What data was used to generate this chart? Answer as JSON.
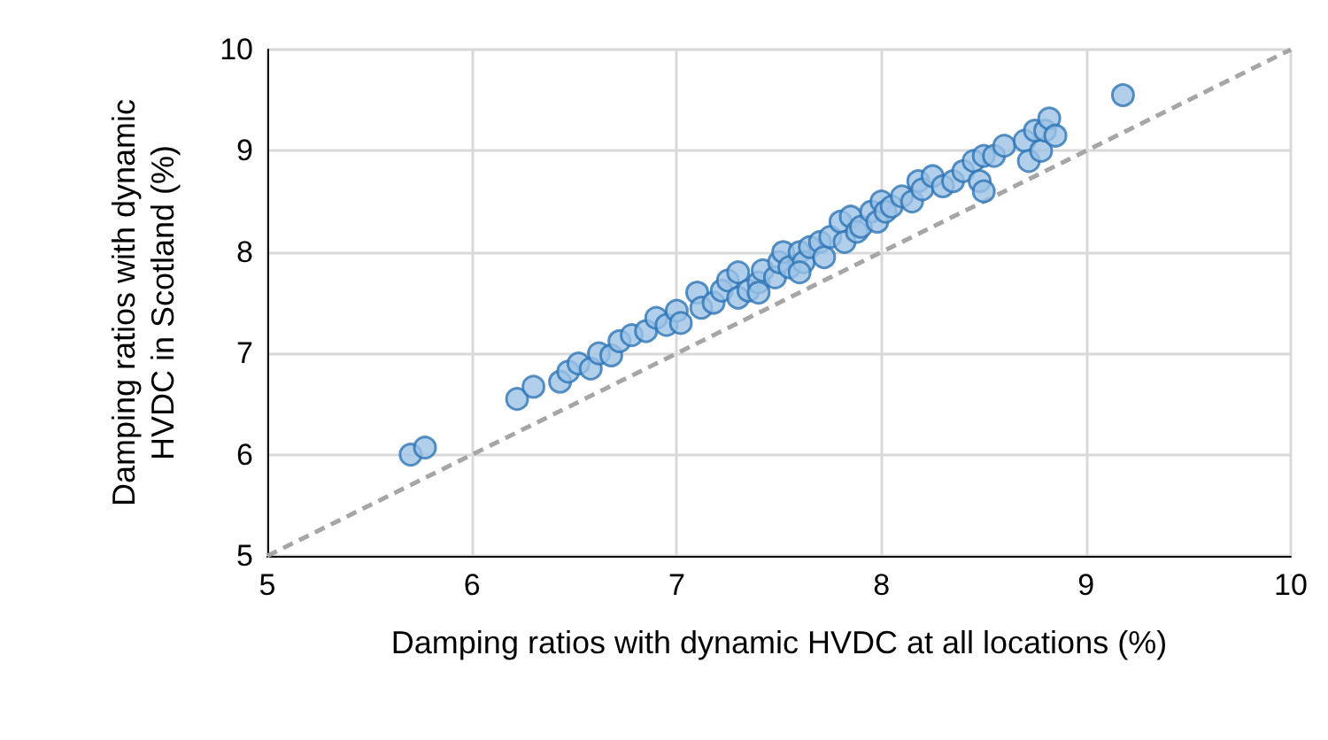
{
  "chart_data": {
    "type": "scatter",
    "xlabel": "Damping ratios with dynamic HVDC at all locations (%)",
    "ylabel": "Damping ratios with dynamic\nHVDC in Scotland (%)",
    "xlim": [
      5,
      10
    ],
    "ylim": [
      5,
      10
    ],
    "xticks": [
      5,
      6,
      7,
      8,
      9,
      10
    ],
    "yticks": [
      5,
      6,
      7,
      8,
      9,
      10
    ],
    "grid": true,
    "marker": "circle",
    "series": [
      {
        "color": "#9dc3e6",
        "x": [
          5.7,
          5.77,
          6.22,
          6.3,
          6.43,
          6.47,
          6.52,
          6.58,
          6.62,
          6.68,
          6.72,
          6.78,
          6.85,
          6.9,
          6.95,
          7.0,
          7.02,
          7.1,
          7.12,
          7.18,
          7.22,
          7.25,
          7.3,
          7.3,
          7.35,
          7.4,
          7.42,
          7.48,
          7.5,
          7.52,
          7.55,
          7.6,
          7.62,
          7.65,
          7.7,
          7.72,
          7.75,
          7.8,
          7.82,
          7.85,
          7.88,
          7.9,
          7.95,
          7.98,
          8.0,
          8.02,
          8.05,
          8.1,
          8.15,
          8.18,
          8.2,
          8.25,
          8.3,
          8.35,
          8.4,
          8.45,
          8.48,
          8.5,
          8.55,
          8.6,
          8.7,
          8.72,
          8.75,
          8.78,
          8.8,
          8.82,
          8.85,
          9.18,
          8.5,
          7.4,
          7.6
        ],
        "values": [
          6.0,
          6.07,
          6.55,
          6.67,
          6.72,
          6.82,
          6.9,
          6.85,
          7.0,
          6.98,
          7.12,
          7.18,
          7.22,
          7.35,
          7.28,
          7.42,
          7.3,
          7.6,
          7.45,
          7.5,
          7.62,
          7.72,
          7.8,
          7.55,
          7.62,
          7.7,
          7.82,
          7.75,
          7.9,
          8.0,
          7.85,
          8.0,
          7.9,
          8.05,
          8.1,
          7.95,
          8.15,
          8.3,
          8.1,
          8.35,
          8.2,
          8.25,
          8.4,
          8.3,
          8.5,
          8.4,
          8.45,
          8.55,
          8.5,
          8.7,
          8.62,
          8.75,
          8.65,
          8.7,
          8.8,
          8.9,
          8.7,
          8.95,
          8.95,
          9.05,
          9.1,
          8.9,
          9.2,
          9.0,
          9.2,
          9.32,
          9.15,
          9.55,
          8.6,
          7.6,
          7.8
        ]
      },
      {
        "type": "line",
        "color": "#a6a6a6",
        "line_style": "dashed",
        "marker": "none",
        "x": [
          5,
          10
        ],
        "values": [
          5,
          10
        ]
      }
    ]
  }
}
